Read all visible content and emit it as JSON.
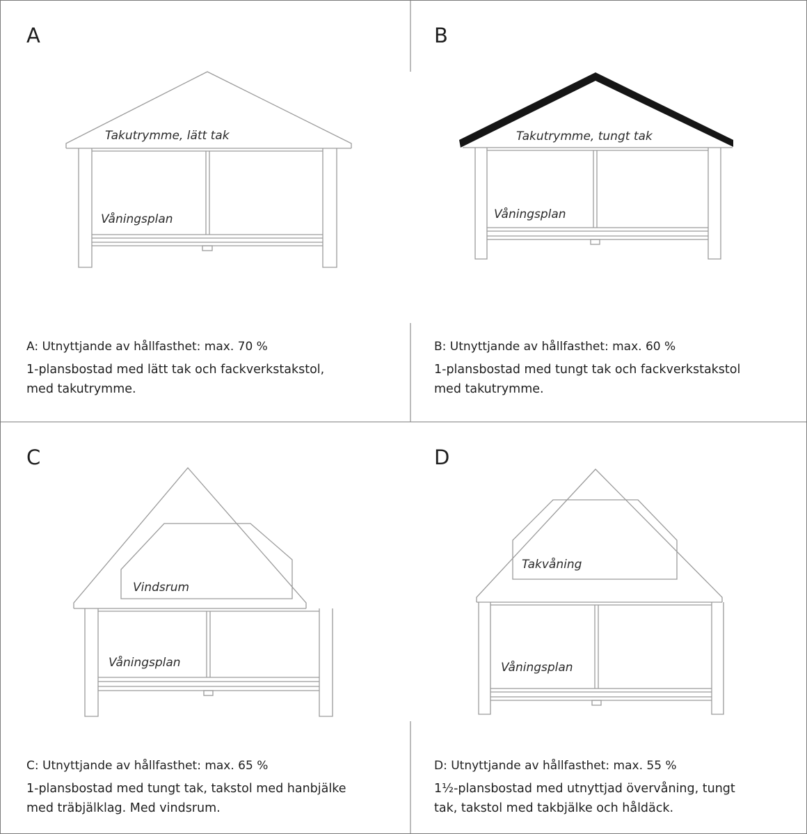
{
  "panels": [
    {
      "letter": "A",
      "roof_label": "Takutrymme, lätt tak",
      "floor_label": "Våningsplan",
      "caption_title": "A: Utnyttjande av hållfasthet: max. 70 %",
      "caption_line1": "1-plansbostad med lätt tak och fackverkstakstol,",
      "caption_line2": "med takutrymme."
    },
    {
      "letter": "B",
      "roof_label": "Takutrymme, tungt tak",
      "floor_label": "Våningsplan",
      "caption_title": "B: Utnyttjande av hållfasthet: max. 60 %",
      "caption_line1": "1-plansbostad med tungt tak och fackverkstakstol",
      "caption_line2": "med takutrymme."
    },
    {
      "letter": "C",
      "attic_label": "Vindsrum",
      "floor_label": "Våningsplan",
      "caption_title": "C: Utnyttjande av hållfasthet: max. 65 %",
      "caption_line1": "1-plansbostad med tungt tak, takstol med hanbjälke",
      "caption_line2": "med träbjälklag. Med vindsrum."
    },
    {
      "letter": "D",
      "attic_label": "Takvåning",
      "floor_label": "Våningsplan",
      "caption_title": "D: Utnyttjande av hållfasthet: max. 55 %",
      "caption_line1": "1½-plansbostad med utnyttjad övervåning, tungt",
      "caption_line2": "tak, takstol med takbjälke och håldäck."
    }
  ]
}
